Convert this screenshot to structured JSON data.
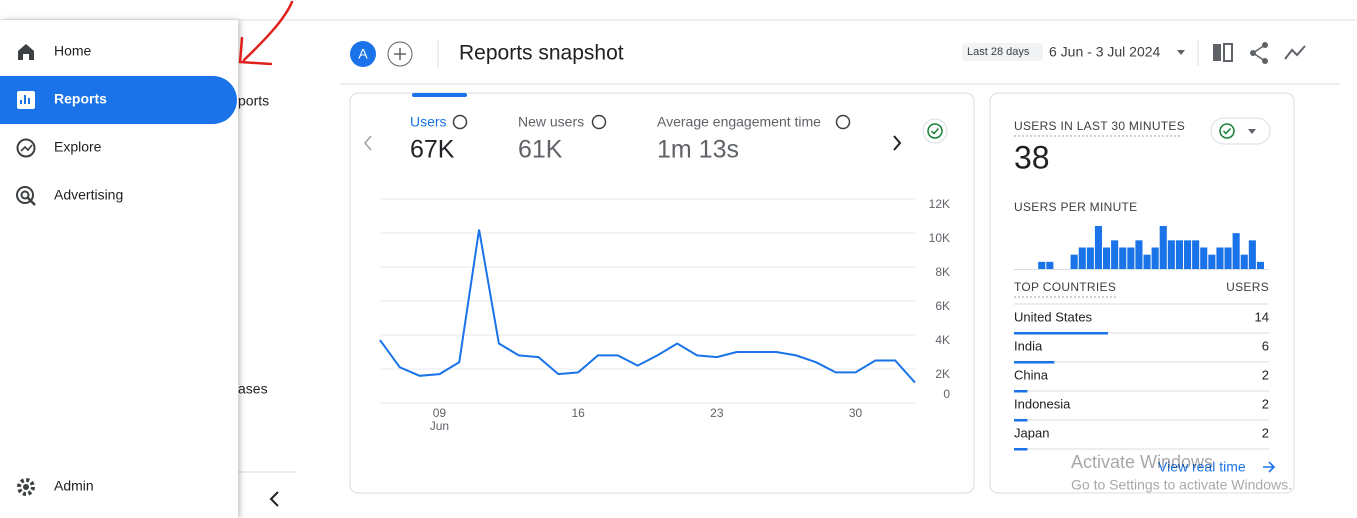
{
  "sidebar": {
    "items": [
      "Home",
      "Reports",
      "Explore",
      "Advertising"
    ],
    "admin": "Admin",
    "behind_texts": [
      "ports",
      "ases"
    ]
  },
  "header": {
    "avatar": "A",
    "title": "Reports snapshot",
    "date_chip": "Last 28 days",
    "date_range": "6 Jun - 3 Jul 2024"
  },
  "metrics": [
    {
      "label": "Users",
      "value": "67K"
    },
    {
      "label": "New users",
      "value": "61K"
    },
    {
      "label": "Average engagement time",
      "value": "1m 13s"
    }
  ],
  "chart_data": [
    {
      "type": "line",
      "color": "#1a73e8",
      "grid": true,
      "categories": [
        null,
        null,
        null,
        "09",
        null,
        null,
        null,
        null,
        null,
        null,
        "16",
        null,
        null,
        null,
        null,
        null,
        null,
        "23",
        null,
        null,
        null,
        null,
        null,
        null,
        "30",
        null,
        null,
        null
      ],
      "x_group_label": "Jun",
      "values": [
        3700,
        2100,
        1600,
        1700,
        2400,
        10200,
        3500,
        2800,
        2700,
        1700,
        1800,
        2800,
        2800,
        2200,
        2800,
        3500,
        2800,
        2700,
        3000,
        3000,
        3000,
        2800,
        2400,
        1800,
        1800,
        2500,
        2500,
        1200
      ],
      "ylim": [
        0,
        12000
      ],
      "yticks": [
        0,
        {
          "value": 2000,
          "label": "2K"
        },
        {
          "value": 4000,
          "label": "4K"
        },
        {
          "value": 6000,
          "label": "6K"
        },
        {
          "value": 8000,
          "label": "8K"
        },
        {
          "value": 10000,
          "label": "10K"
        },
        {
          "value": 12000,
          "label": "12K"
        }
      ]
    },
    {
      "type": "bar",
      "title": "USERS PER MINUTE",
      "color": "#1a73e8",
      "ylim": [
        0,
        6
      ],
      "values": [
        0,
        0,
        1,
        1,
        0,
        0,
        2,
        3,
        3,
        6,
        3,
        4,
        3,
        3,
        4,
        2,
        3,
        6,
        4,
        4,
        4,
        4,
        3,
        2,
        3,
        3,
        5,
        2,
        4,
        1
      ]
    }
  ],
  "realtime": {
    "title": "USERS IN LAST 30 MINUTES",
    "count": 38
  },
  "countries": {
    "header": [
      "TOP COUNTRIES",
      "USERS"
    ],
    "rows": [
      {
        "name": "United States",
        "users": 14
      },
      {
        "name": "India",
        "users": 6
      },
      {
        "name": "China",
        "users": 2
      },
      {
        "name": "Indonesia",
        "users": 2
      },
      {
        "name": "Japan",
        "users": 2
      }
    ]
  },
  "link": "View real time",
  "watermark": {
    "title": "Activate Windows",
    "subtitle": "Go to Settings to activate Windows."
  }
}
